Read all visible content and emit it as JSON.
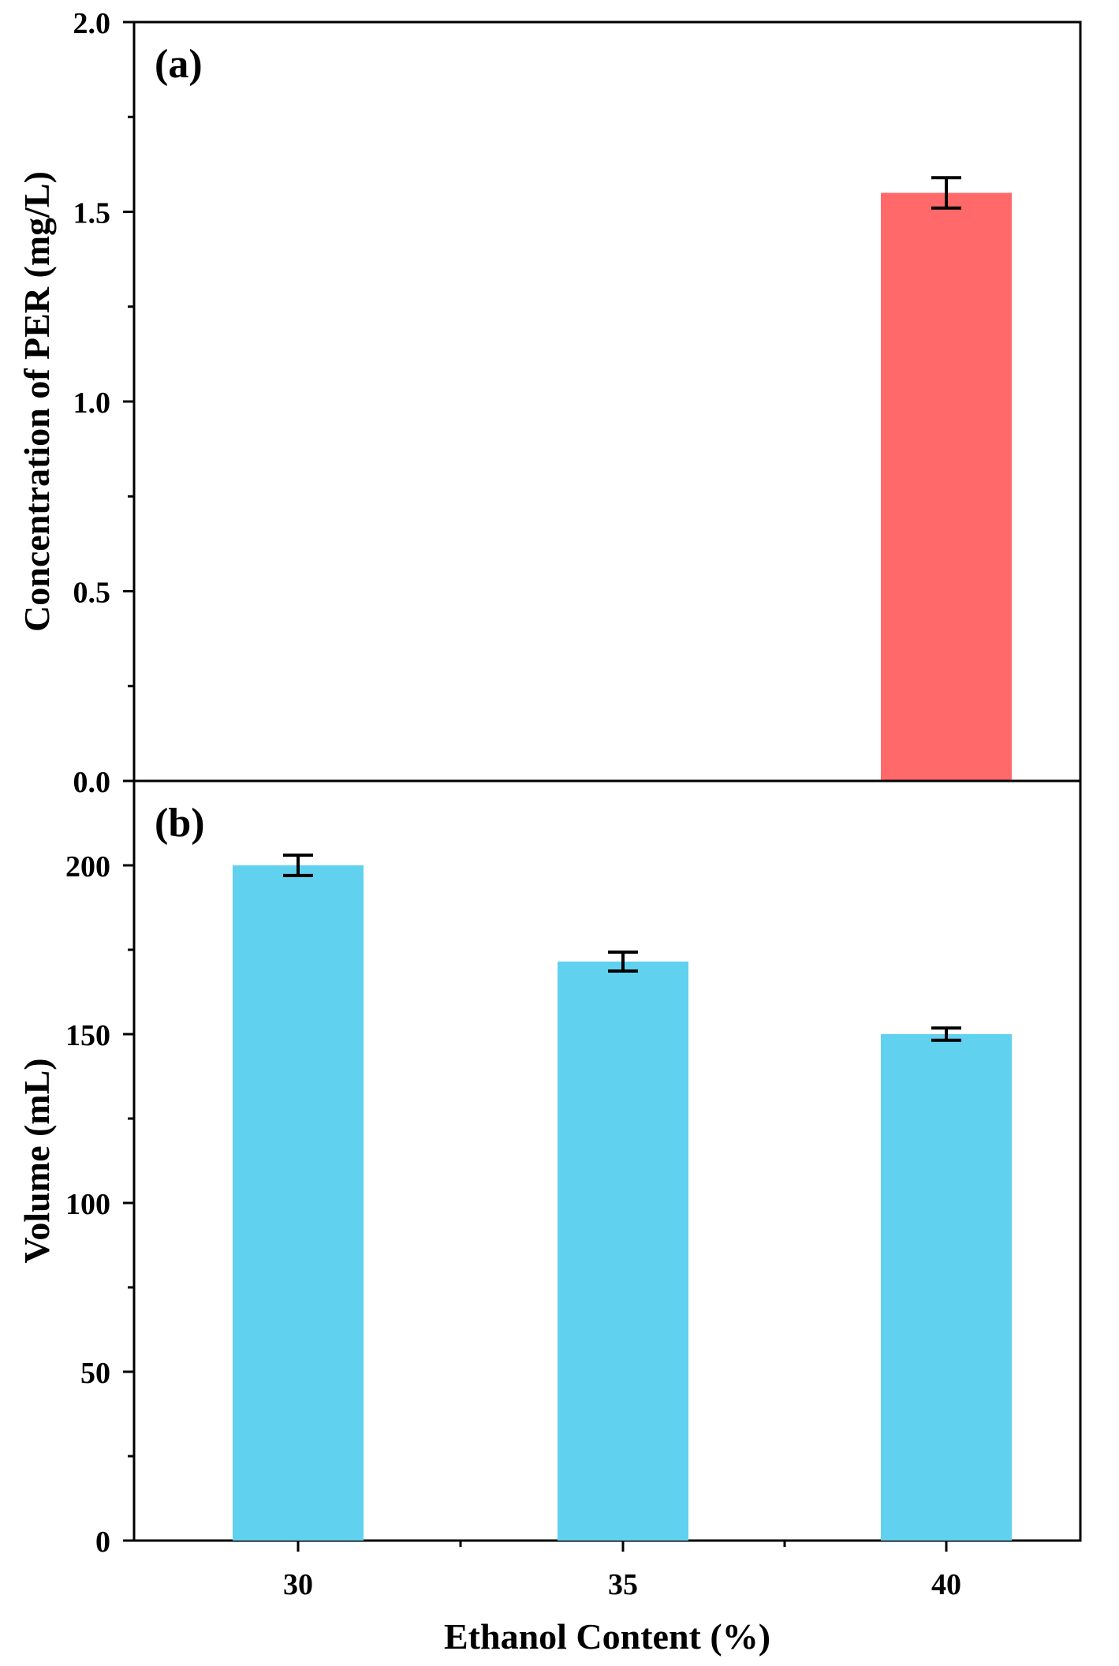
{
  "chart_data": [
    {
      "panel": "a",
      "type": "bar",
      "panel_label": "(a)",
      "ylabel": "Concentration of PER (mg/L)",
      "categories": [
        "30",
        "35",
        "40"
      ],
      "values": [
        0,
        0,
        1.55
      ],
      "errors": [
        0,
        0,
        0.04
      ],
      "ylim": [
        0,
        2.0
      ],
      "yticks": [
        0.0,
        0.5,
        1.0,
        1.5,
        2.0
      ],
      "ytick_labels": [
        "0.0",
        "0.5",
        "1.0",
        "1.5",
        "2.0"
      ],
      "bar_color": "#FF6969"
    },
    {
      "panel": "b",
      "type": "bar",
      "panel_label": "(b)",
      "ylabel": "Volume (mL)",
      "categories": [
        "30",
        "35",
        "40"
      ],
      "values": [
        200,
        171.5,
        150
      ],
      "errors": [
        3,
        2.8,
        1.8
      ],
      "ylim": [
        0,
        225
      ],
      "yticks": [
        0,
        50,
        100,
        150,
        200
      ],
      "ytick_labels": [
        "0",
        "50",
        "100",
        "150",
        "200"
      ],
      "bar_color": "#61D1F0"
    }
  ],
  "shared": {
    "xlabel": "Ethanol Content (%)",
    "xtick_labels": [
      "30",
      "35",
      "40"
    ]
  }
}
